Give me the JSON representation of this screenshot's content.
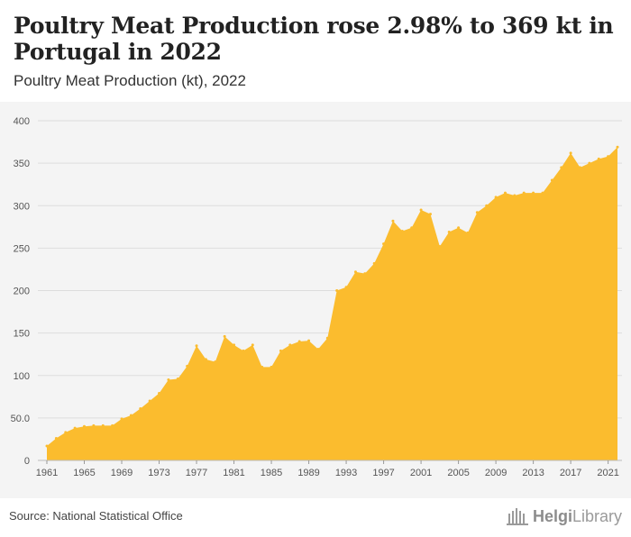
{
  "title": "Poultry Meat Production rose 2.98% to 369 kt in Portugal in 2022",
  "subtitle": "Poultry Meat Production (kt), 2022",
  "source": "Source: National Statistical Office",
  "logo": {
    "brand": "Helgi",
    "suffix": "Library"
  },
  "colors": {
    "area": "#fbbc2e",
    "grid": "#dddddd",
    "panel": "#f4f4f4"
  },
  "chart_data": {
    "type": "area",
    "title": "Poultry Meat Production rose 2.98% to 369 kt in Portugal in 2022",
    "subtitle": "Poultry Meat Production (kt), 2022",
    "xlabel": "",
    "ylabel": "",
    "ylim": [
      0,
      400
    ],
    "yticks": [
      "0",
      "50.0",
      "100",
      "150",
      "200",
      "250",
      "300",
      "350",
      "400"
    ],
    "ytick_values": [
      0,
      50,
      100,
      150,
      200,
      250,
      300,
      350,
      400
    ],
    "xticks": [
      "1961",
      "1965",
      "1969",
      "1973",
      "1977",
      "1981",
      "1985",
      "1989",
      "1993",
      "1997",
      "2001",
      "2005",
      "2009",
      "2013",
      "2017",
      "2021"
    ],
    "grid": true,
    "x": [
      1961,
      1962,
      1963,
      1964,
      1965,
      1966,
      1967,
      1968,
      1969,
      1970,
      1971,
      1972,
      1973,
      1974,
      1975,
      1976,
      1977,
      1978,
      1979,
      1980,
      1981,
      1982,
      1983,
      1984,
      1985,
      1986,
      1987,
      1988,
      1989,
      1990,
      1991,
      1992,
      1993,
      1994,
      1995,
      1996,
      1997,
      1998,
      1999,
      2000,
      2001,
      2002,
      2003,
      2004,
      2005,
      2006,
      2007,
      2008,
      2009,
      2010,
      2011,
      2012,
      2013,
      2014,
      2015,
      2016,
      2017,
      2018,
      2019,
      2020,
      2021,
      2022
    ],
    "series": [
      {
        "values": [
          17,
          26,
          33,
          38,
          40,
          41,
          41,
          41,
          49,
          53,
          61,
          70,
          79,
          95,
          96,
          111,
          135,
          119,
          116,
          146,
          136,
          129,
          136,
          110,
          110,
          129,
          136,
          140,
          141,
          131,
          144,
          200,
          204,
          222,
          220,
          232,
          255,
          282,
          270,
          274,
          295,
          290,
          252,
          269,
          274,
          268,
          292,
          300,
          310,
          315,
          312,
          315,
          315,
          315,
          330,
          345,
          362,
          345,
          350,
          355,
          358,
          369
        ]
      }
    ]
  }
}
